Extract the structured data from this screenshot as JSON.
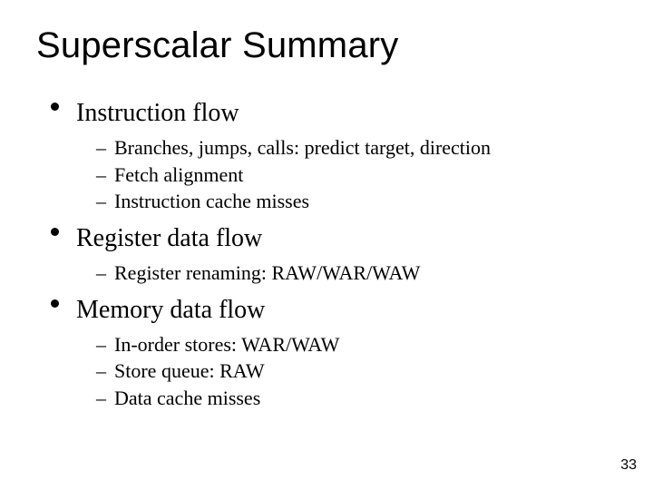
{
  "page_number": "33",
  "title": "Superscalar Summary",
  "colors": {
    "background": "#ffffff",
    "text": "#000000",
    "bullet": "#000000"
  },
  "typography": {
    "title_font": "Arial",
    "title_fontsize_pt": 30,
    "title_weight": "normal",
    "body_font": "Times New Roman",
    "l1_fontsize_pt": 21,
    "l2_fontsize_pt": 17
  },
  "list": [
    {
      "label": "Instruction flow",
      "items": [
        "Branches, jumps, calls: predict target, direction",
        "Fetch alignment",
        "Instruction cache misses"
      ]
    },
    {
      "label": "Register data flow",
      "items": [
        "Register renaming: RAW/WAR/WAW"
      ]
    },
    {
      "label": "Memory data flow",
      "items": [
        "In-order stores: WAR/WAW",
        "Store queue: RAW",
        "Data cache misses"
      ]
    }
  ]
}
